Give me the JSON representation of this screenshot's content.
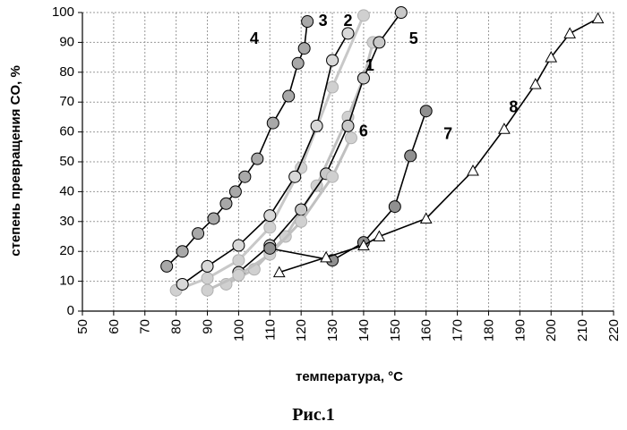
{
  "chart_data": {
    "type": "line",
    "title": "",
    "caption": "Рис.1",
    "xlabel": "температура, °C",
    "ylabel": "степень превращения CO, %",
    "xlim": [
      50,
      220
    ],
    "ylim": [
      0,
      100
    ],
    "xticks": [
      50,
      60,
      70,
      80,
      90,
      100,
      110,
      120,
      130,
      140,
      150,
      160,
      170,
      180,
      190,
      200,
      210,
      220
    ],
    "yticks": [
      0,
      10,
      20,
      30,
      40,
      50,
      60,
      70,
      80,
      90,
      100
    ],
    "grid": true,
    "series": [
      {
        "name": "1",
        "color": "#d0d0d0",
        "line": "#c0c0c0",
        "marker": "circle",
        "x": [
          96,
          105,
          115,
          125,
          135,
          140,
          143
        ],
        "y": [
          9,
          14,
          25,
          42,
          65,
          78,
          90
        ]
      },
      {
        "name": "2",
        "color": "#d0d0d0",
        "line": "#c8c8c8",
        "marker": "circle",
        "x": [
          80,
          90,
          100,
          110,
          120,
          130,
          140
        ],
        "y": [
          7,
          11,
          17,
          28,
          48,
          75,
          99
        ]
      },
      {
        "name": "3",
        "color": "#d8d8d8",
        "line": "#000000",
        "marker": "circle",
        "x": [
          82,
          90,
          100,
          110,
          118,
          125,
          130,
          135
        ],
        "y": [
          9,
          15,
          22,
          32,
          45,
          62,
          84,
          93
        ]
      },
      {
        "name": "4",
        "color": "#a8a8a8",
        "line": "#000000",
        "marker": "circle",
        "x": [
          77,
          82,
          87,
          92,
          96,
          99,
          102,
          106,
          111,
          116,
          119,
          121,
          122
        ],
        "y": [
          15,
          20,
          26,
          31,
          36,
          40,
          45,
          51,
          63,
          72,
          83,
          88,
          97
        ]
      },
      {
        "name": "5",
        "color": "#c8c8c8",
        "line": "#000000",
        "marker": "circle",
        "x": [
          100,
          110,
          120,
          128,
          135,
          140,
          145,
          152
        ],
        "y": [
          13,
          22,
          34,
          46,
          62,
          78,
          90,
          100
        ]
      },
      {
        "name": "6",
        "color": "#d0d0d0",
        "line": "#c0c0c0",
        "marker": "circle",
        "x": [
          90,
          100,
          110,
          120,
          130,
          136
        ],
        "y": [
          7,
          12,
          19,
          30,
          45,
          58
        ]
      },
      {
        "name": "7",
        "color": "#909090",
        "line": "#000000",
        "marker": "circle",
        "x": [
          110,
          130,
          140,
          150,
          155,
          160
        ],
        "y": [
          21,
          17,
          23,
          35,
          52,
          67
        ]
      },
      {
        "name": "8",
        "color": "#ffffff",
        "line": "#000000",
        "marker": "triangle",
        "x": [
          113,
          128,
          140,
          145,
          160,
          175,
          185,
          195,
          200,
          206,
          215
        ],
        "y": [
          13,
          18,
          22,
          25,
          31,
          47,
          61,
          76,
          85,
          93,
          98
        ]
      }
    ],
    "annotations": [
      {
        "text": "4",
        "x": 105,
        "y": 91
      },
      {
        "text": "3",
        "x": 127,
        "y": 97
      },
      {
        "text": "2",
        "x": 135,
        "y": 97
      },
      {
        "text": "5",
        "x": 156,
        "y": 91
      },
      {
        "text": "1",
        "x": 142,
        "y": 82
      },
      {
        "text": "6",
        "x": 140,
        "y": 60
      },
      {
        "text": "7",
        "x": 167,
        "y": 59
      },
      {
        "text": "8",
        "x": 188,
        "y": 68
      }
    ]
  }
}
